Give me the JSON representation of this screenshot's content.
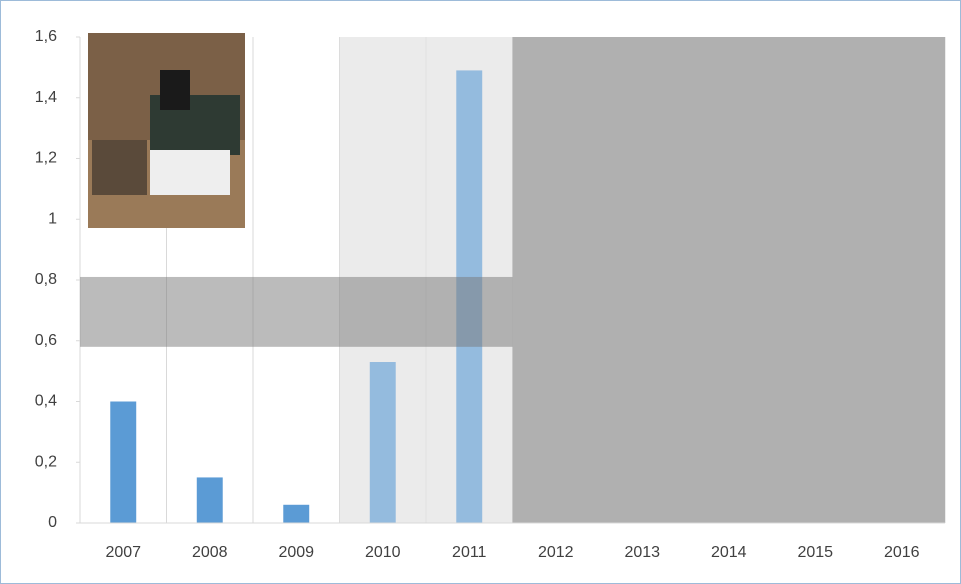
{
  "chart_data": {
    "type": "bar",
    "categories": [
      "2007",
      "2008",
      "2009",
      "2010",
      "2011",
      "2012",
      "2013",
      "2014",
      "2015",
      "2016"
    ],
    "values": [
      0.4,
      0.15,
      0.06,
      0.53,
      1.49,
      null,
      null,
      null,
      null,
      null
    ],
    "color": "#5b9bd5",
    "ylim": [
      0,
      1.6
    ],
    "yticks": [
      0,
      {
        "value": 0.2,
        "label": "0,2"
      },
      {
        "value": 0.4,
        "label": "0,4"
      },
      {
        "value": 0.6,
        "label": "0,6"
      },
      {
        "value": 0.8,
        "label": "0,8"
      },
      1,
      {
        "value": 1.2,
        "label": "1,2"
      },
      {
        "value": 1.4,
        "label": "1,4"
      },
      {
        "value": 1.6,
        "label": "1,6"
      }
    ],
    "highlight_band": [
      0.58,
      0.81
    ],
    "shaded_regions": [
      {
        "from": "2010",
        "to": "2011",
        "color": "#ebebeb"
      },
      {
        "from": "2012",
        "to": "2016",
        "color": "#b0b0b0"
      }
    ]
  }
}
